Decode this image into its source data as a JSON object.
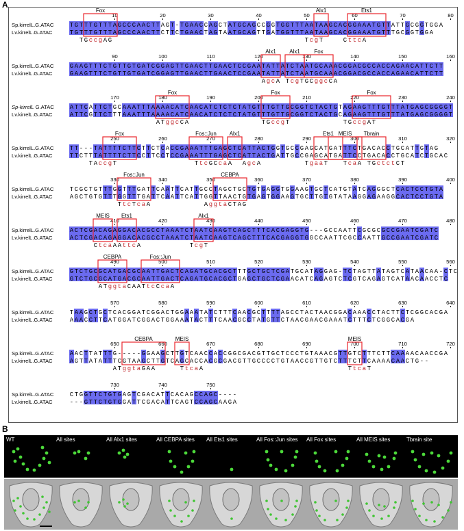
{
  "panel_a_label": "A",
  "panel_b_label": "B",
  "seq1_name": "Sp.kirrelL.G.ATAC",
  "seq1_name_italic": "Sp-kirrelL",
  "seq1_name_italic_suffix": " G.ATAC",
  "seq2_name": "Lv.kirrelL.G.ATAC",
  "colors": {
    "highlight": "#6b6bf0",
    "box": "#e8242b",
    "mutation": "#c0252a",
    "text": "#000000"
  },
  "blocks": [
    {
      "s1": "TGTTTGTTTAGCCCAACTTAGT-TGAACCAGCTATGCAGCCGGTGGTTTAATAAGCACGGAAATGTTATTGCGGTGGA",
      "s2": "TGTTTGTTTAGCCCAACTTCTTCTGAACTAGTAATGCAGTTGATGGTTTAATAAGCACGGAAATGTTTGCGGTGGA",
      "ticks": [
        "10",
        "20",
        "30",
        "40",
        "50",
        "60",
        "70",
        "80"
      ],
      "motifs": [
        {
          "label": "Fox"
        },
        {
          "label": "Alx1"
        },
        {
          "label": "Ets1"
        }
      ],
      "muts": [
        {
          "seq": "TGccgAG"
        },
        {
          "seq": "TcgT"
        },
        {
          "seq": "CttcA"
        }
      ]
    },
    {
      "s1": "GAAGTTTCTGTTGTGATCGGAGTTGAACTTGAACTCCGAATATTATCTAATGCAAACGGACGCCACCAGAACATTCTT",
      "s2": "GAAGTTTCTGTTGTGATCGGAGTTGAACTTGAACTCCGAATATTATCTAATGCAAACGGACGCCACCAGAACATTCTT",
      "ticks": [
        "90",
        "100",
        "110",
        "120",
        "130",
        "140",
        "150",
        "160"
      ],
      "motifs": [
        {
          "label": "Alx1"
        },
        {
          "label": "Alx1"
        },
        {
          "label": "Fox"
        }
      ],
      "muts": [
        {
          "seq": "AgcA"
        },
        {
          "seq": "TcgTGCggcCA"
        }
      ]
    },
    {
      "s1": "ATTCATTCTGCAAATTTAAAACATCAACATCTCTCTATGTTTGTTGCGGTCTACTGTAGAAGTTTGTTTATGAGCGGGGT",
      "s2": "ATTCGTTCTTTAAATTTAAAACATCAACATCTCTCTATGTTTGTTGCGGTCTACTGCAGAAGTTTGTTTATGAGCGGGGT",
      "ticks": [
        "170",
        "180",
        "190",
        "200",
        "210",
        "220",
        "230",
        "240"
      ],
      "motifs": [
        {
          "label": "Fox"
        },
        {
          "label": "Fox"
        },
        {
          "label": "Fox"
        }
      ],
      "muts": [
        {
          "seq": "ATggcCA"
        },
        {
          "seq": "TGccgT"
        },
        {
          "seq": "TGccgAT"
        }
      ]
    },
    {
      "s1": "TT---TATTTTCTTCTTCTCACCGAAATTTGAGCTCATTACTGGTGCCGAGCATGATTTCTGACACCTGCATTGTAG",
      "s2": "TTCTTTATTTTCTTCCTTCCTCCGAAATTTGAGCTCATTACTGATTGCCGAGCATGATTCCTGACACCTGCATCTGCAC",
      "ticks": [
        "250",
        "260",
        "270",
        "280",
        "290",
        "300",
        "310",
        "320"
      ],
      "motifs": [
        {
          "label": "Fox"
        },
        {
          "label": "Fos::Jun"
        },
        {
          "label": "Alx1"
        },
        {
          "label": "Ets1"
        },
        {
          "label": "MEIS"
        },
        {
          "label": "Tbrain"
        }
      ],
      "muts": [
        {
          "seq": "TAccgT"
        },
        {
          "seq": "TtcGCcaA"
        },
        {
          "seq": "AgcA"
        },
        {
          "seq": "TgaaT"
        },
        {
          "seq": "TcaA"
        },
        {
          "seq": "TGctctCT"
        }
      ]
    },
    {
      "s1": "TCGCTGTTTGGTTTGATTCAATTCATTGCCTAGCTGCTGTGAGGTGGAAGTGCTCATGTATCAGGGCTCACTCCTGTA",
      "s2": "AGCTGTGTTTGGTTTGATTCAATTCATTGGTTAACTGTGAGTGGAAGTGCTTGTGTATAAGGAGAAGGCACTCCTGTA",
      "ticks": [
        "330",
        "340",
        "350",
        "360",
        "370",
        "380",
        "390",
        "400"
      ],
      "motifs": [
        {
          "label": "Fos::Jun"
        },
        {
          "label": "CEBPA"
        }
      ],
      "muts": [
        {
          "seq": "TtcTcaA"
        },
        {
          "seq": "AggtaCTAG"
        }
      ]
    },
    {
      "s1": "ACTCGACAGAGGACACGCCTAAATCTAATCAAGTCAGCTTTCACGAGGTG---GCCAATTCGCGCGCCGAATCGATC",
      "s2": "ACTCGACAGAGGACACGCCTAAATCTAATCAAGTCAGCTTTCACGAGGTGGCCAATTCGCCAATTGCCGAATCGATC",
      "ticks": [
        "410",
        "420",
        "430",
        "440",
        "450",
        "460",
        "470",
        "480"
      ],
      "motifs": [
        {
          "label": "MEIS"
        },
        {
          "label": "Ets1"
        },
        {
          "label": "Alx1"
        }
      ],
      "muts": [
        {
          "seq": "CtcaA"
        },
        {
          "seq": "AttcA"
        },
        {
          "seq": "TcgT"
        }
      ]
    },
    {
      "s1": "GTCTGCGCATGACGCAATTGACTCAGATGCACGCTTTGCTGCTCGATGCATAGGAG-TCTAGTTATAGTCATAACAA-CTC",
      "s2": "GTCTGCGCATGACGCAATTGACTCAGATGCACGCTGAGCTGCTCGAACATCAGAGTCTCGTCAGAGTCATAACAACCTC",
      "ticks": [
        "490",
        "500",
        "510",
        "520",
        "530",
        "540",
        "550",
        "560"
      ],
      "motifs": [
        {
          "label": "CEBPA"
        },
        {
          "label": "Fos::Jun"
        }
      ],
      "muts": [
        {
          "seq": "ATggtaCAATtcCcaA"
        }
      ]
    },
    {
      "s1": "TAAGCTGCTCACGGATCGGACTGGAAATATCTTTCAACGCTTTTAGCCTACTAACGGACAAACCTACTTCTCGGCACGA",
      "s2": "AAACCTTCATGGATCGGACTGGAAATACTTTCAACGCCTATGTTCTAACGAACGAAATCTTTCTCGGCACGA",
      "ticks": [
        "570",
        "580",
        "590",
        "600",
        "610",
        "620",
        "630",
        "640"
      ],
      "motifs": [],
      "muts": []
    },
    {
      "s1": "AACTTATTTG-----GGAAGCTTGTCAACCACCGGCGACGTTGCTCCCTGTAAACGTTGTCTTTCTTCAAAACAACCGA",
      "s2": "AGTTATATTTCGTAAGCTTGTCAGCACCACGCGACGTTGCCCCTGTAACCGTTGTCTTTCTTCAAAACAACTG--",
      "ticks": [
        "650",
        "660",
        "670",
        "680",
        "690",
        "700",
        "710",
        "720"
      ],
      "motifs": [
        {
          "label": "CEBPA"
        },
        {
          "label": "MEIS"
        },
        {
          "label": "MEIS"
        }
      ],
      "muts": [
        {
          "seq": "ATggtaGAA"
        },
        {
          "seq": "TtcaA"
        },
        {
          "seq": "TtcaT"
        }
      ]
    },
    {
      "s1": "CTGGTTCTGTGAGTCGACATTCACAGCCAGC----",
      "s2": "---GTTCTGTGGATTCGACATTCAGTCCAGCAAGA",
      "ticks": [
        "730",
        "740",
        "750"
      ],
      "motifs": [],
      "muts": []
    }
  ],
  "images": [
    {
      "label": "WT"
    },
    {
      "label": "All sites"
    },
    {
      "label": "All Alx1 sites"
    },
    {
      "label": "All CEBPA sites"
    },
    {
      "label": "All Ets1 sites"
    },
    {
      "label": "All Fos::Jun sites"
    },
    {
      "label": "All Fox sites"
    },
    {
      "label": "All MEIS sites"
    },
    {
      "label": "Tbrain site"
    }
  ]
}
